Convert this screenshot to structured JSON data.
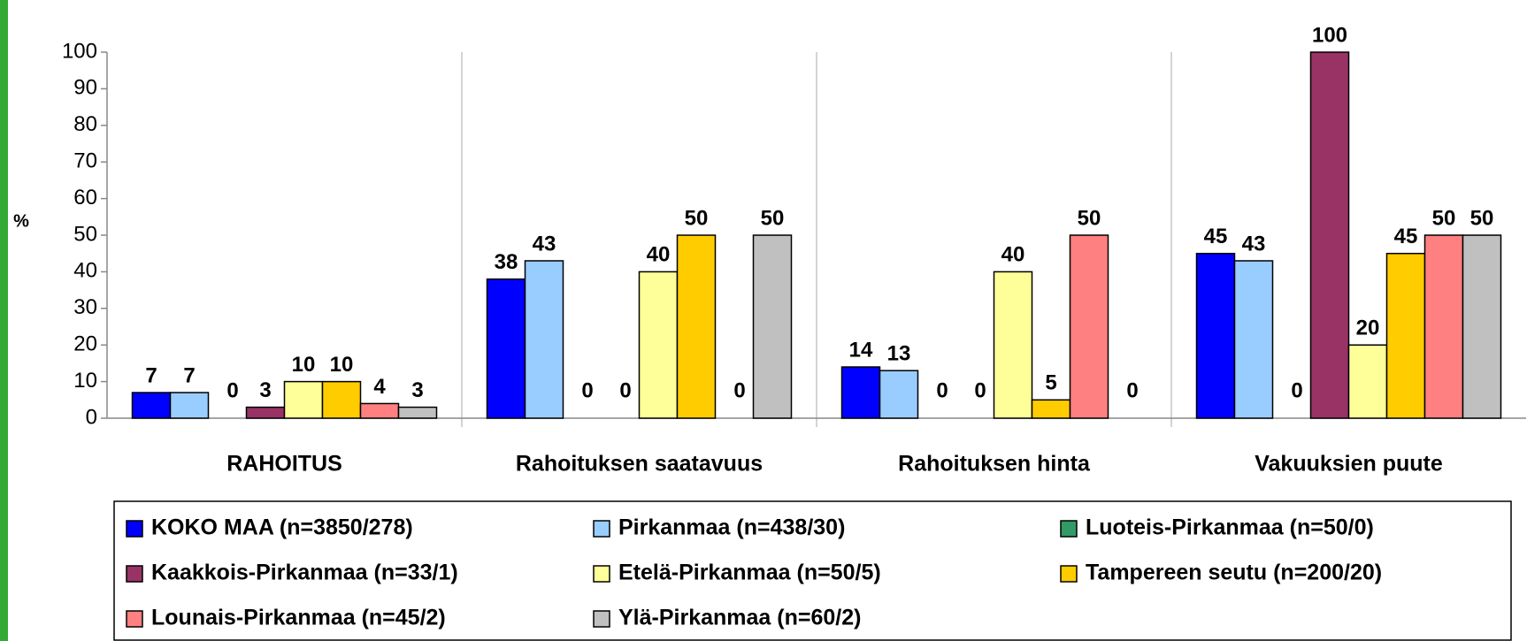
{
  "chart_data": {
    "type": "bar",
    "y_label": "%",
    "categories": [
      "RAHOITUS",
      "Rahoituksen saatavuus",
      "Rahoituksen hinta",
      "Vakuuksien puute"
    ],
    "series": [
      {
        "name": "KOKO MAA (n=3850/278)",
        "color": "#0000ff",
        "values": [
          7,
          38,
          14,
          45
        ]
      },
      {
        "name": "Pirkanmaa (n=438/30)",
        "color": "#99ccff",
        "values": [
          7,
          43,
          13,
          43
        ]
      },
      {
        "name": "Luoteis-Pirkanmaa (n=50/0)",
        "color": "#339966",
        "values": [
          0,
          0,
          0,
          0
        ]
      },
      {
        "name": "Kaakkois-Pirkanmaa (n=33/1)",
        "color": "#993366",
        "values": [
          3,
          0,
          0,
          100
        ]
      },
      {
        "name": "Etelä-Pirkanmaa (n=50/5)",
        "color": "#ffff99",
        "values": [
          10,
          40,
          40,
          20
        ]
      },
      {
        "name": "Tampereen seutu (n=200/20)",
        "color": "#ffcc00",
        "values": [
          10,
          50,
          5,
          45
        ]
      },
      {
        "name": "Lounais-Pirkanmaa (n=45/2)",
        "color": "#ff8080",
        "values": [
          4,
          0,
          50,
          50
        ]
      },
      {
        "name": "Ylä-Pirkanmaa (n=60/2)",
        "color": "#c0c0c0",
        "values": [
          3,
          50,
          0,
          50
        ]
      }
    ],
    "ylim": [
      0,
      100
    ],
    "yticks": [
      0,
      10,
      20,
      30,
      40,
      50,
      60,
      70,
      80,
      90,
      100
    ],
    "grid": "x",
    "legend": "bottom"
  }
}
